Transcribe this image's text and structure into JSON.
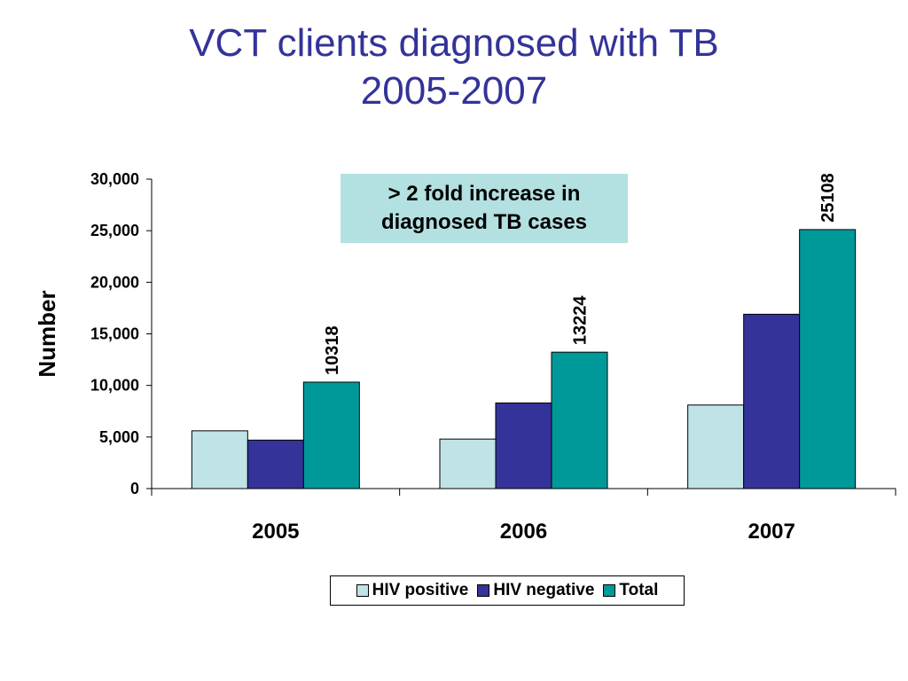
{
  "title": {
    "line1": "VCT clients diagnosed with TB",
    "line2": "2005-2007"
  },
  "callout": {
    "line1": "> 2 fold increase in",
    "line2": "diagnosed TB cases"
  },
  "colors": {
    "title": "#333399",
    "callout_bg": "#b3e0e0"
  },
  "chart_data": {
    "type": "bar",
    "categories": [
      "2005",
      "2006",
      "2007"
    ],
    "series": [
      {
        "name": "HIV positive",
        "color": "#bfe3e6",
        "values": [
          5600,
          4800,
          8100
        ]
      },
      {
        "name": "HIV negative",
        "color": "#333399",
        "values": [
          4700,
          8300,
          16900
        ]
      },
      {
        "name": "Total",
        "color": "#009999",
        "values": [
          10318,
          13224,
          25108
        ],
        "data_labels": [
          "10318",
          "13224",
          "25108"
        ]
      }
    ],
    "ylabel": "Number",
    "xlabel": "",
    "ylim": [
      0,
      30000
    ],
    "yticks": [
      0,
      5000,
      10000,
      15000,
      20000,
      25000,
      30000
    ],
    "ytick_labels": [
      "0",
      "5,000",
      "10,000",
      "15,000",
      "20,000",
      "25,000",
      "30,000"
    ],
    "grid": false,
    "legend_position": "bottom"
  }
}
